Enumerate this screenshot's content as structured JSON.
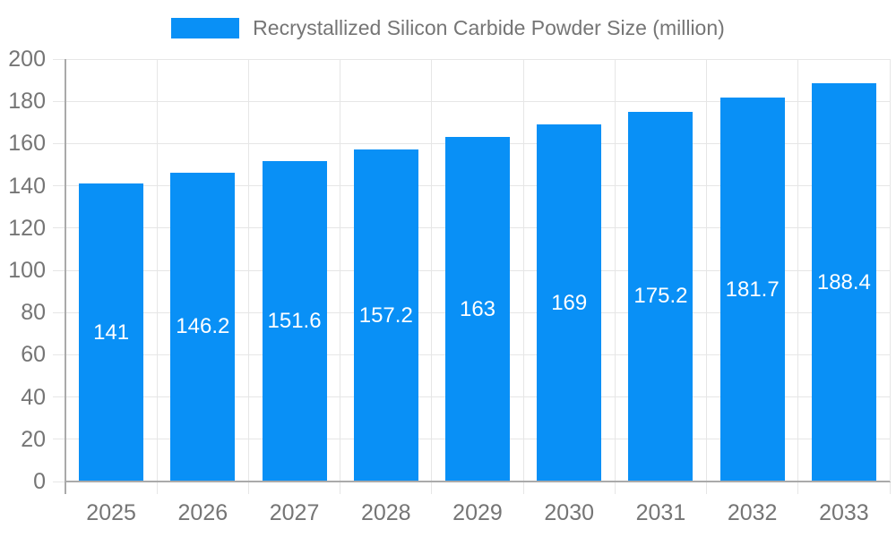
{
  "legend": {
    "label": "Recrystallized Silicon Carbide Powder Size (million)"
  },
  "chart_data": {
    "type": "bar",
    "title": "Recrystallized Silicon Carbide Powder Size (million)",
    "categories": [
      "2025",
      "2026",
      "2027",
      "2028",
      "2029",
      "2030",
      "2031",
      "2032",
      "2033"
    ],
    "series": [
      {
        "name": "Recrystallized Silicon Carbide Powder Size (million)",
        "values": [
          141,
          146.2,
          151.6,
          157.2,
          163,
          169,
          175.2,
          181.7,
          188.4
        ]
      }
    ],
    "value_labels_shown": true,
    "xlabel": "",
    "ylabel": "",
    "ylim": [
      0,
      200
    ],
    "ytick_step": 20,
    "grid": true,
    "legend_position": "top-center",
    "colors": {
      "bar": "#0990f6",
      "value_label": "#ffffff",
      "axis_text": "#757575",
      "grid_line": "#e6e6e6",
      "axis_line": "#aaaaaa",
      "background": "#ffffff"
    }
  }
}
